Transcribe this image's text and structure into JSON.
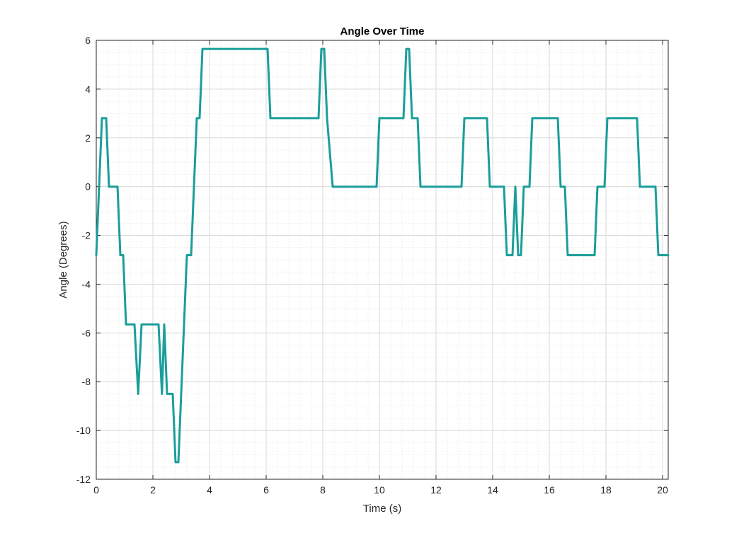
{
  "chart_data": {
    "type": "line",
    "title": "Angle Over Time",
    "xlabel": "Time (s)",
    "ylabel": "Angle (Degrees)",
    "xlim": [
      0,
      20.2
    ],
    "ylim": [
      -12,
      6
    ],
    "xticks": [
      0,
      2,
      4,
      6,
      8,
      10,
      12,
      14,
      16,
      18,
      20
    ],
    "yticks": [
      -12,
      -10,
      -8,
      -6,
      -4,
      -2,
      0,
      2,
      4,
      6
    ],
    "xtick_labels": [
      "0",
      "2",
      "4",
      "6",
      "8",
      "10",
      "12",
      "14",
      "16",
      "18",
      "20"
    ],
    "ytick_labels": [
      "-12",
      "-10",
      "-8",
      "-6",
      "-4",
      "-2",
      "0",
      "2",
      "4",
      "6"
    ],
    "grid": true,
    "minor_grid": true,
    "series": [
      {
        "color": "#1a9e9a",
        "x": [
          0.0,
          0.2,
          0.35,
          0.45,
          0.75,
          0.85,
          0.95,
          1.05,
          1.35,
          1.48,
          1.6,
          2.2,
          2.32,
          2.4,
          2.5,
          2.7,
          2.8,
          2.9,
          3.2,
          3.35,
          3.55,
          3.65,
          3.75,
          6.05,
          6.15,
          7.85,
          7.95,
          8.05,
          8.15,
          8.35,
          9.9,
          10.0,
          10.85,
          10.95,
          11.05,
          11.15,
          11.35,
          11.45,
          12.9,
          13.0,
          13.8,
          13.9,
          14.4,
          14.5,
          14.7,
          14.8,
          14.9,
          15.0,
          15.1,
          15.3,
          15.4,
          16.3,
          16.4,
          16.55,
          16.65,
          17.6,
          17.7,
          17.95,
          18.05,
          19.1,
          19.2,
          19.75,
          19.85,
          20.2
        ],
        "y": [
          -2.81,
          2.81,
          2.81,
          0,
          0,
          -2.81,
          -2.81,
          -5.65,
          -5.65,
          -8.5,
          -5.65,
          -5.65,
          -8.5,
          -5.65,
          -8.5,
          -8.5,
          -11.3,
          -11.3,
          -2.81,
          -2.81,
          2.81,
          2.81,
          5.65,
          5.65,
          2.81,
          2.81,
          5.65,
          5.65,
          2.81,
          0,
          0,
          2.81,
          2.81,
          5.65,
          5.65,
          2.81,
          2.81,
          0,
          0,
          2.81,
          2.81,
          0,
          0,
          -2.81,
          -2.81,
          0,
          -2.81,
          -2.81,
          0,
          0,
          2.81,
          2.81,
          0,
          0,
          -2.81,
          -2.81,
          0,
          0,
          2.81,
          2.81,
          0,
          0,
          -2.81,
          -2.81
        ]
      }
    ]
  }
}
